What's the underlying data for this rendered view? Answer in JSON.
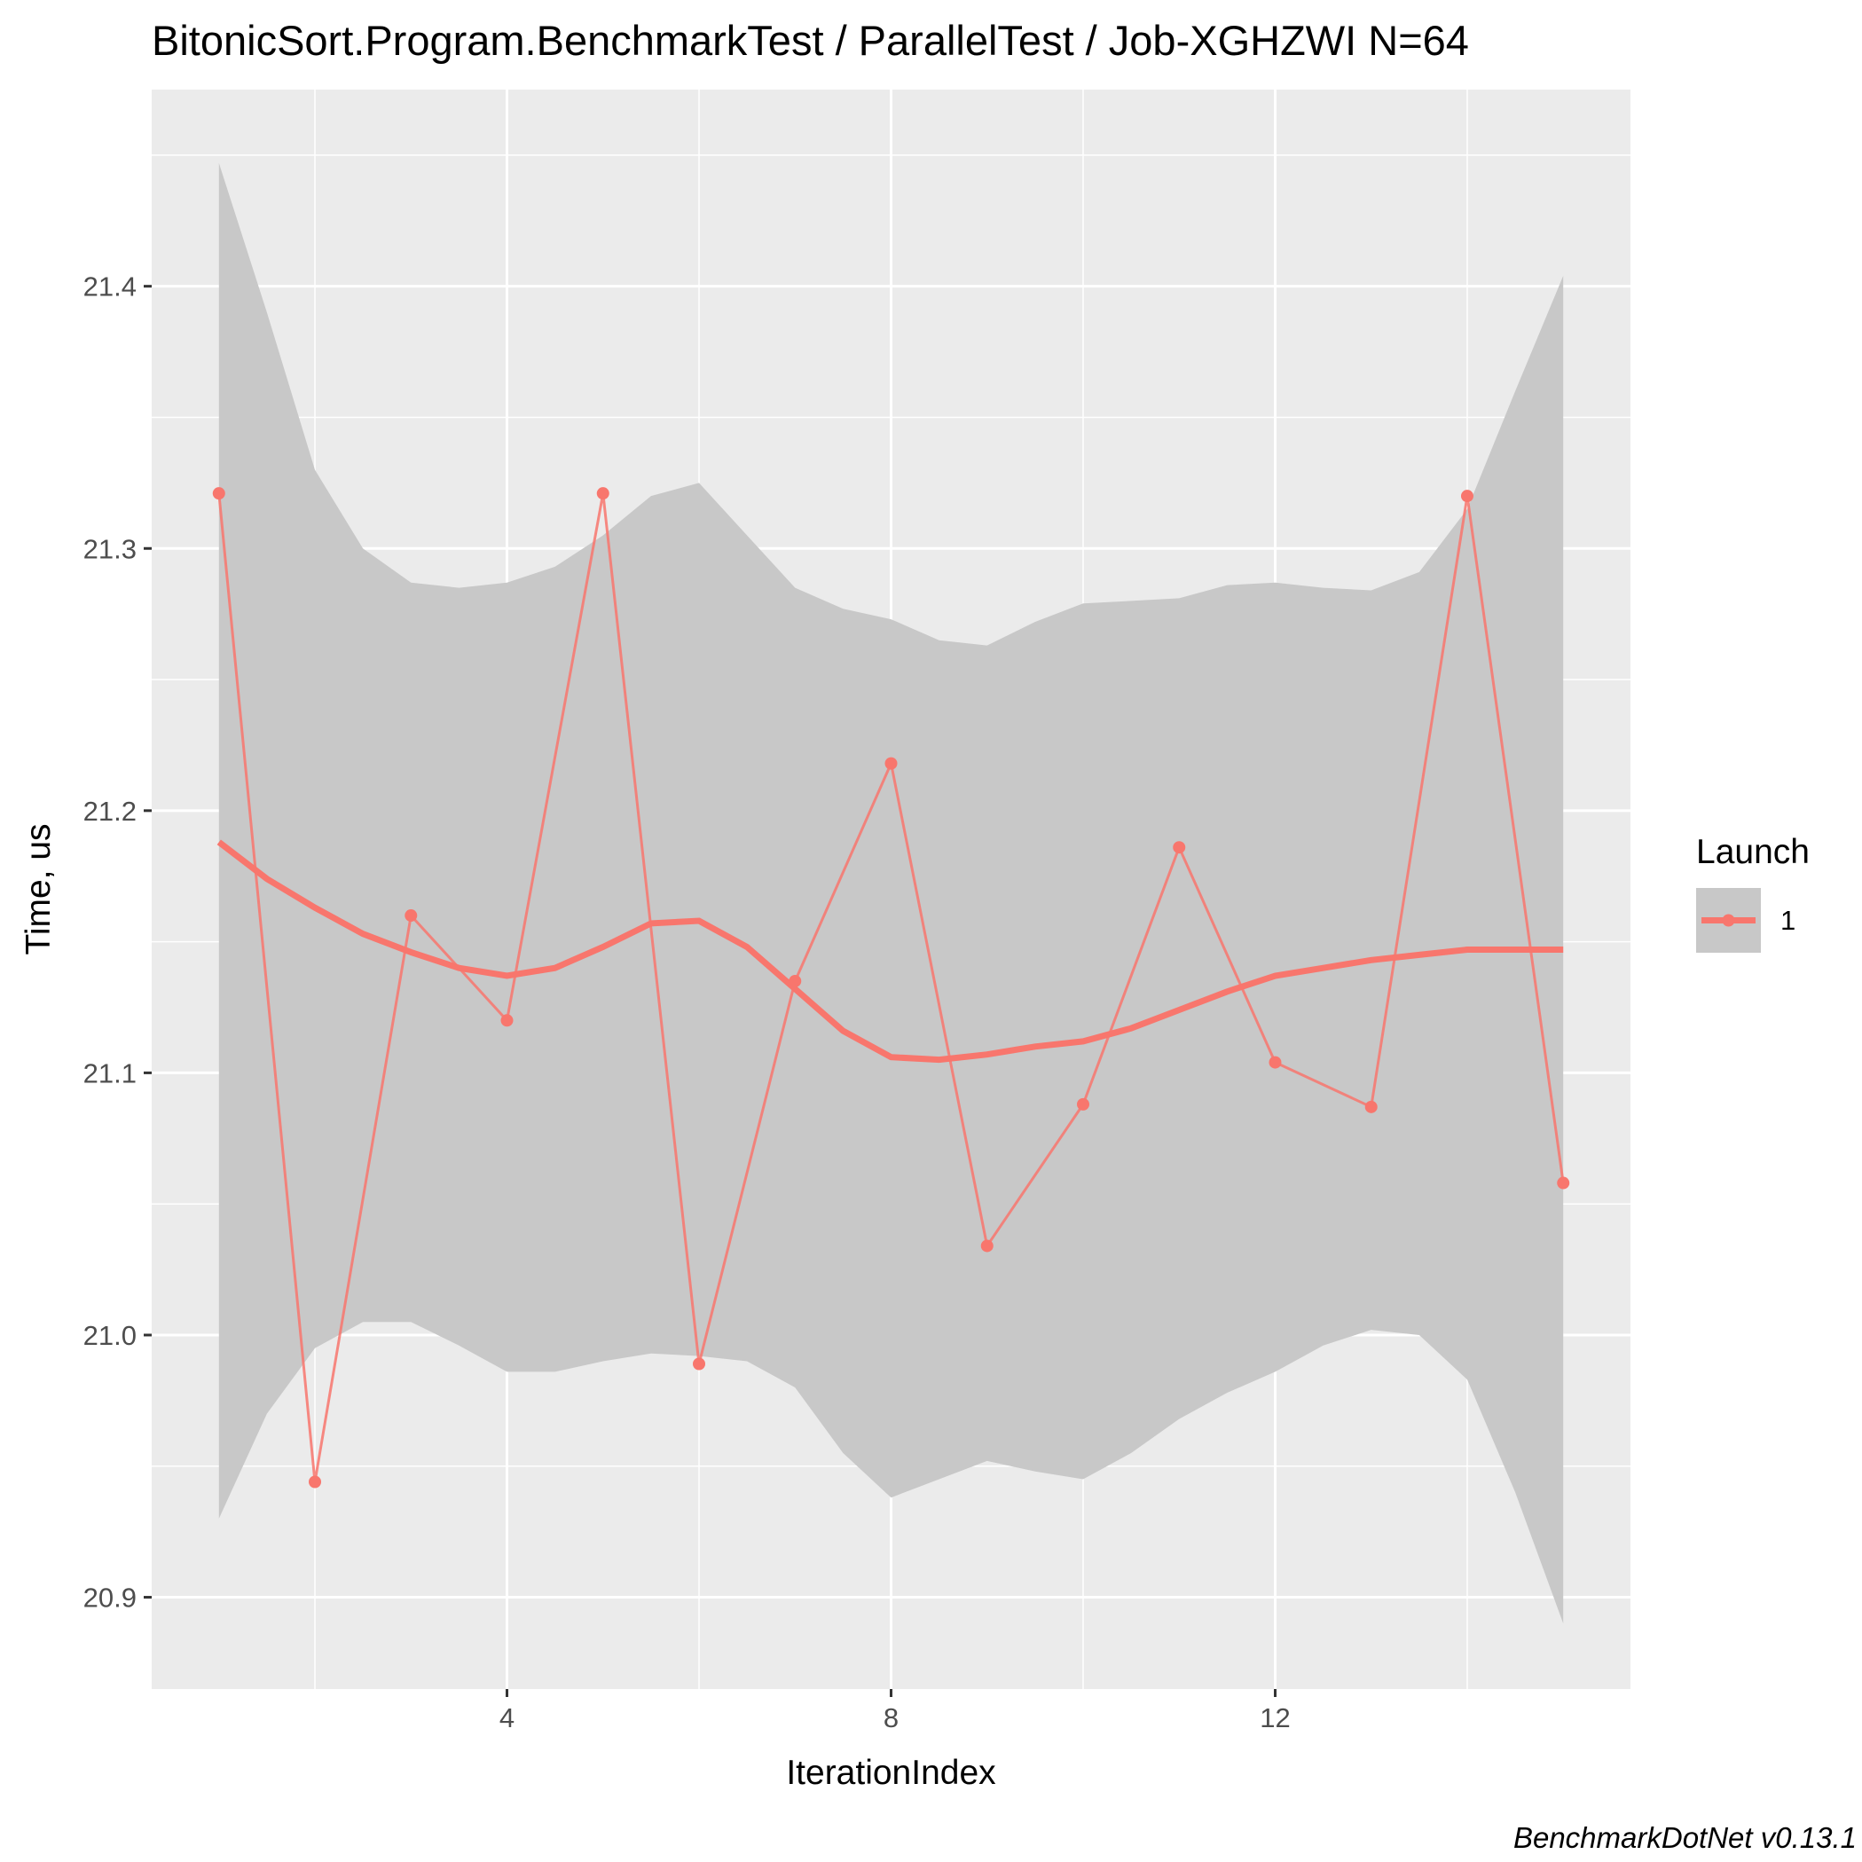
{
  "chart_data": {
    "type": "line",
    "title": "BitonicSort.Program.BenchmarkTest / ParallelTest / Job-XGHZWI N=64",
    "xlabel": "IterationIndex",
    "ylabel": "Time, us",
    "caption": "BenchmarkDotNet v0.13.1",
    "xlim": [
      0.3,
      15.7
    ],
    "ylim": [
      20.865,
      21.475
    ],
    "x_ticks": [
      4,
      8,
      12
    ],
    "x_tick_labels": [
      "4",
      "8",
      "12"
    ],
    "x_minor_ticks": [
      2,
      6,
      10,
      14
    ],
    "y_ticks": [
      20.9,
      21.0,
      21.1,
      21.2,
      21.3,
      21.4
    ],
    "y_tick_labels": [
      "20.9",
      "21.0",
      "21.1",
      "21.2",
      "21.3",
      "21.4"
    ],
    "y_minor_ticks": [
      20.95,
      21.05,
      21.15,
      21.25,
      21.35,
      21.45
    ],
    "grid": true,
    "legend": {
      "title": "Launch",
      "position": "right",
      "entries": [
        "1"
      ]
    },
    "colors": {
      "series": "#F8766D",
      "panel": "#EBEBEB",
      "grid": "#FFFFFF",
      "ribbon": "#C8C8C8"
    },
    "series": [
      {
        "name": "1",
        "x": [
          1,
          2,
          3,
          4,
          5,
          6,
          7,
          8,
          9,
          10,
          11,
          12,
          13,
          14,
          15
        ],
        "values": [
          21.321,
          20.944,
          21.16,
          21.12,
          21.321,
          20.989,
          21.135,
          21.218,
          21.034,
          21.088,
          21.186,
          21.104,
          21.087,
          21.32,
          21.058
        ]
      }
    ],
    "smooth": {
      "x": [
        1,
        1.5,
        2,
        2.5,
        3,
        3.5,
        4,
        4.5,
        5,
        5.5,
        6,
        6.5,
        7,
        7.5,
        8,
        8.5,
        9,
        9.5,
        10,
        10.5,
        11,
        11.5,
        12,
        12.5,
        13,
        13.5,
        14,
        14.5,
        15
      ],
      "y": [
        21.188,
        21.174,
        21.163,
        21.153,
        21.146,
        21.14,
        21.137,
        21.14,
        21.148,
        21.157,
        21.158,
        21.148,
        21.132,
        21.116,
        21.106,
        21.105,
        21.107,
        21.11,
        21.112,
        21.117,
        21.124,
        21.131,
        21.137,
        21.14,
        21.143,
        21.145,
        21.147,
        21.147,
        21.147
      ],
      "upper": [
        21.447,
        21.39,
        21.33,
        21.3,
        21.287,
        21.285,
        21.287,
        21.293,
        21.305,
        21.32,
        21.325,
        21.305,
        21.285,
        21.277,
        21.273,
        21.265,
        21.263,
        21.272,
        21.279,
        21.28,
        21.281,
        21.286,
        21.287,
        21.285,
        21.284,
        21.291,
        21.315,
        21.36,
        21.404
      ],
      "lower": [
        20.93,
        20.97,
        20.995,
        21.005,
        21.005,
        20.996,
        20.986,
        20.986,
        20.99,
        20.993,
        20.992,
        20.99,
        20.98,
        20.955,
        20.938,
        20.945,
        20.952,
        20.948,
        20.945,
        20.955,
        20.968,
        20.978,
        20.986,
        20.996,
        21.002,
        21.0,
        20.983,
        20.94,
        20.89
      ]
    }
  }
}
